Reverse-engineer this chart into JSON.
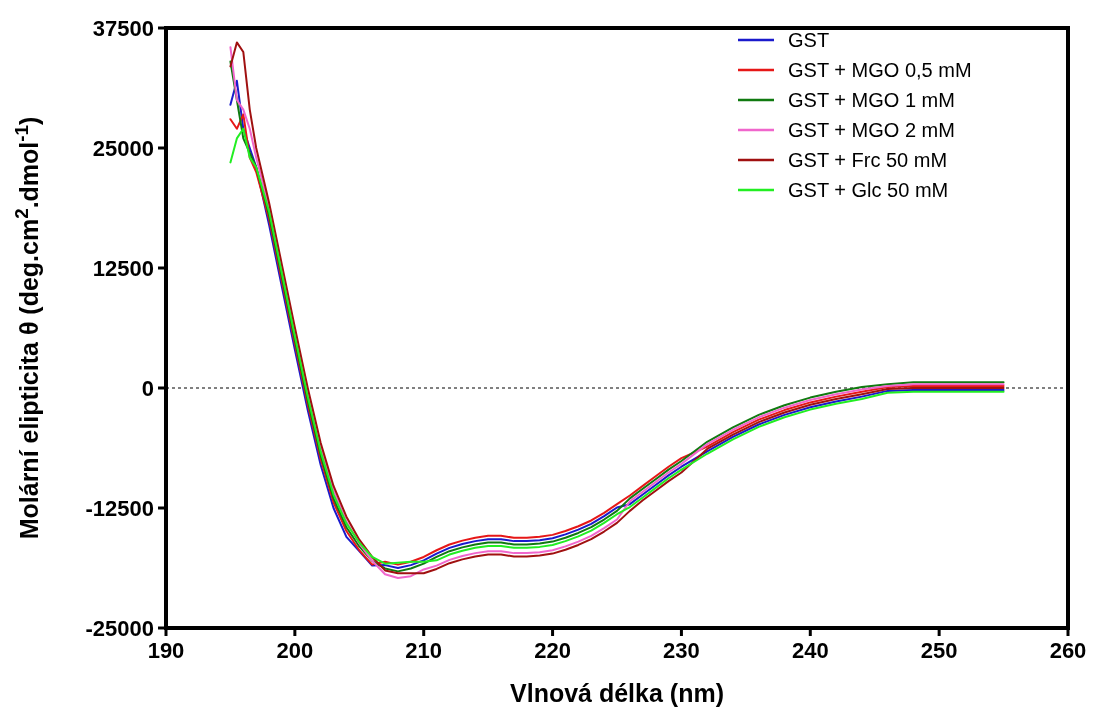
{
  "chart_data": {
    "type": "line",
    "xlabel": "Vlnová délka (nm)",
    "ylabel": "Molární elipticita   θ (deg.cm$^{2}$.dmol$^{-1}$)",
    "x": [
      195,
      195.5,
      196,
      196.5,
      197,
      198,
      199,
      200,
      201,
      202,
      203,
      204,
      205,
      206,
      207,
      208,
      209,
      210,
      211,
      212,
      213,
      214,
      215,
      216,
      217,
      218,
      219,
      220,
      221,
      222,
      223,
      224,
      225,
      226,
      227,
      228,
      229,
      230,
      232,
      234,
      236,
      238,
      240,
      242,
      244,
      246,
      248,
      250,
      252,
      255
    ],
    "xlim": [
      190,
      260
    ],
    "xticks": [
      190,
      200,
      210,
      220,
      230,
      240,
      250,
      260
    ],
    "ylim": [
      -25000,
      37500
    ],
    "yticks": [
      -25000,
      -12500,
      0,
      12500,
      25000,
      37500
    ],
    "grid": false,
    "legend": "top right",
    "marker": "none",
    "line_style": "solid",
    "ref_lines": [
      {
        "axis": "y",
        "value": 0,
        "line_style": "dotted",
        "color": "#000000"
      }
    ],
    "series": [
      {
        "name": "GST",
        "color": "#1a1acc",
        "values": [
          29500,
          32000,
          27000,
          25000,
          23000,
          17000,
          10500,
          4000,
          -2300,
          -8000,
          -12500,
          -15500,
          -17000,
          -18500,
          -18450,
          -18750,
          -18450,
          -17950,
          -17250,
          -16650,
          -16250,
          -15950,
          -15750,
          -15750,
          -15950,
          -15950,
          -15850,
          -15650,
          -15250,
          -14750,
          -14150,
          -13350,
          -12450,
          -12100,
          -11100,
          -10100,
          -9100,
          -8200,
          -6600,
          -5100,
          -3800,
          -2800,
          -2000,
          -1400,
          -900,
          -300,
          -200,
          -200,
          -200,
          -200
        ]
      },
      {
        "name": "GST + MGO 0,5 mM",
        "color": "#e61717",
        "values": [
          28000,
          27000,
          28500,
          24000,
          22500,
          17600,
          11100,
          4600,
          -1700,
          -7400,
          -11900,
          -14900,
          -16900,
          -18400,
          -18100,
          -18400,
          -18100,
          -17600,
          -16900,
          -16300,
          -15900,
          -15600,
          -15400,
          -15400,
          -15600,
          -15600,
          -15500,
          -15300,
          -14900,
          -14400,
          -13800,
          -13000,
          -12100,
          -11200,
          -10200,
          -9200,
          -8200,
          -7300,
          -6100,
          -4600,
          -3300,
          -2300,
          -1500,
          -900,
          -400,
          100,
          200,
          200,
          200,
          200
        ]
      },
      {
        "name": "GST + MGO 1 mM",
        "color": "#107a10",
        "values": [
          34000,
          30000,
          26000,
          24500,
          23000,
          18000,
          11500,
          5000,
          -1300,
          -7000,
          -11500,
          -14500,
          -16500,
          -18000,
          -18800,
          -19100,
          -18800,
          -18300,
          -17600,
          -17000,
          -16600,
          -16300,
          -16100,
          -16100,
          -16300,
          -16300,
          -16200,
          -16000,
          -15600,
          -15100,
          -14500,
          -13700,
          -12800,
          -11500,
          -10500,
          -9500,
          -8500,
          -7600,
          -5600,
          -4100,
          -2800,
          -1800,
          -1000,
          -400,
          100,
          400,
          600,
          600,
          600,
          600
        ]
      },
      {
        "name": "GST + MGO 2 mM",
        "color": "#f066cc",
        "values": [
          35500,
          30000,
          29000,
          27000,
          24000,
          18800,
          12300,
          5800,
          -500,
          -6200,
          -10700,
          -13900,
          -16200,
          -18000,
          -19400,
          -19800,
          -19600,
          -18900,
          -18500,
          -17900,
          -17500,
          -17200,
          -17000,
          -17000,
          -17200,
          -17200,
          -17100,
          -16900,
          -16500,
          -16000,
          -15400,
          -14600,
          -13700,
          -11800,
          -10800,
          -9800,
          -8800,
          -7900,
          -5850,
          -4350,
          -3050,
          -2050,
          -1250,
          -650,
          -150,
          200,
          400,
          400,
          400,
          400
        ]
      },
      {
        "name": "GST + Frc 50 mM",
        "color": "#a01010",
        "values": [
          33500,
          36000,
          35000,
          29000,
          25000,
          19300,
          12800,
          6300,
          0,
          -5700,
          -10200,
          -13400,
          -15800,
          -17600,
          -19000,
          -19300,
          -19300,
          -19300,
          -18850,
          -18250,
          -17850,
          -17550,
          -17350,
          -17350,
          -17550,
          -17550,
          -17450,
          -17250,
          -16850,
          -16350,
          -15750,
          -14950,
          -14050,
          -12800,
          -11700,
          -10700,
          -9700,
          -8800,
          -6350,
          -4850,
          -3550,
          -2550,
          -1750,
          -1150,
          -650,
          -100,
          0,
          0,
          0,
          0
        ]
      },
      {
        "name": "GST + Glc 50 mM",
        "color": "#22ee22",
        "values": [
          23500,
          26000,
          27000,
          24000,
          23000,
          18400,
          11900,
          5400,
          -900,
          -6600,
          -11100,
          -14100,
          -16100,
          -17600,
          -18300,
          -18200,
          -18100,
          -18100,
          -17950,
          -17350,
          -16950,
          -16650,
          -16450,
          -16450,
          -16650,
          -16650,
          -16550,
          -16350,
          -15950,
          -15450,
          -14850,
          -14050,
          -13150,
          -12400,
          -11400,
          -10400,
          -9400,
          -8500,
          -6850,
          -5350,
          -4050,
          -3050,
          -2250,
          -1650,
          -1150,
          -500,
          -400,
          -400,
          -400,
          -400
        ]
      }
    ]
  }
}
